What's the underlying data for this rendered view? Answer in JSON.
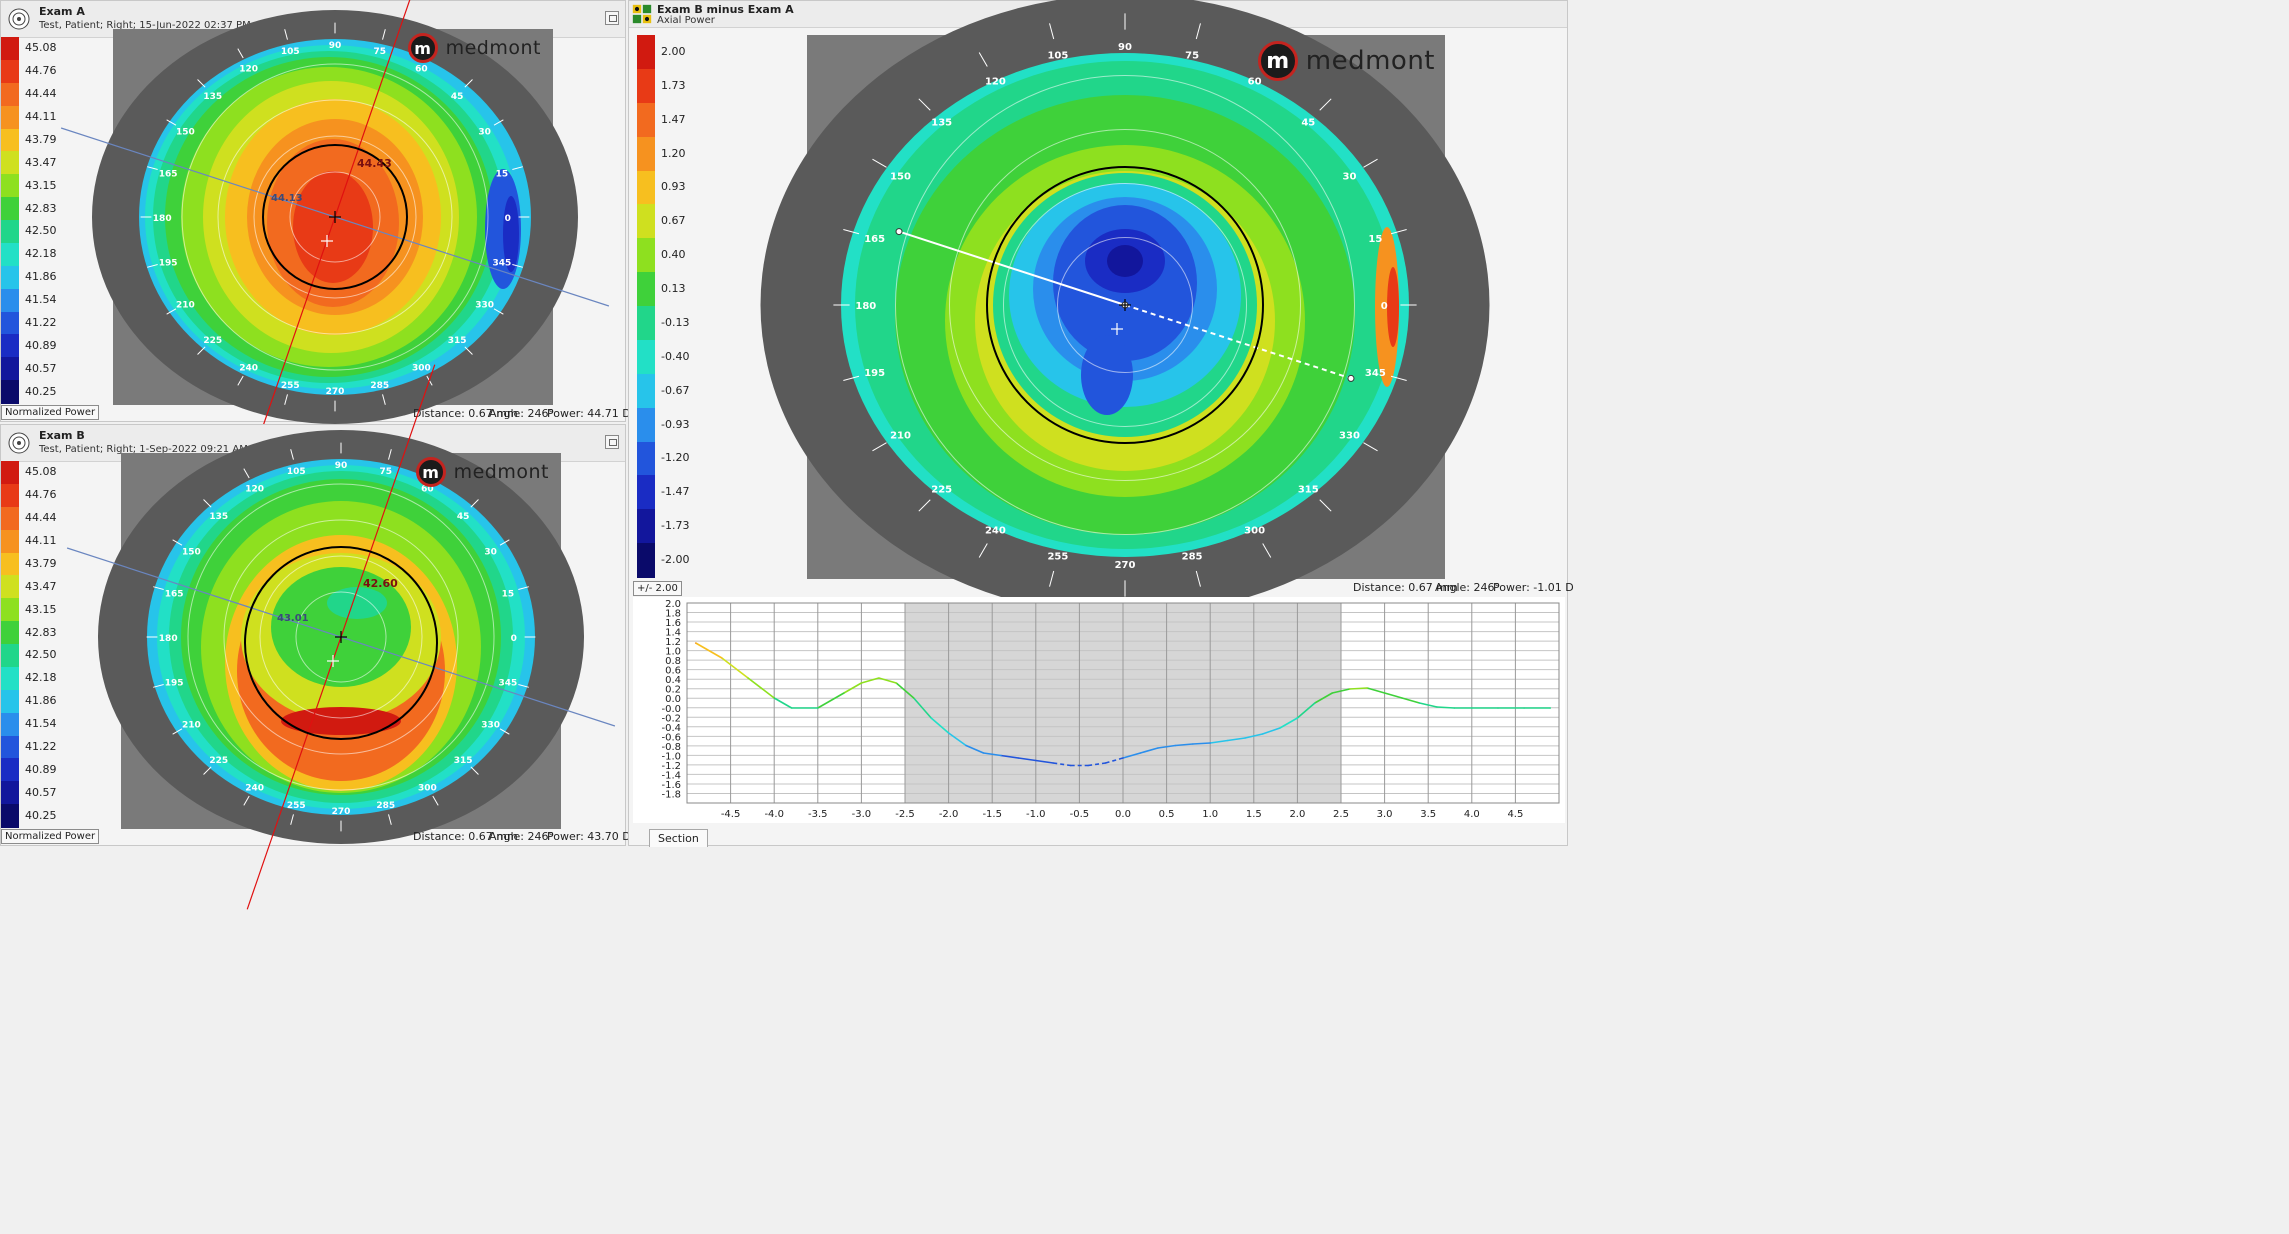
{
  "examA": {
    "title": "Exam A",
    "subtitle": "Test, Patient; Right; 15-Jun-2022 02:37 PM",
    "mode_label": "Normalized Power",
    "distance": "Distance:  0.67 mm",
    "angle": "Angle:  246°",
    "power": "Power:  44.71 D",
    "center_value": "44.43",
    "side_value": "44.13"
  },
  "examB": {
    "title": "Exam B",
    "subtitle": "Test, Patient; Right; 1-Sep-2022 09:21 AM",
    "mode_label": "Normalized Power",
    "distance": "Distance:  0.67 mm",
    "angle": "Angle:  246°",
    "power": "Power:  43.70 D",
    "center_value": "42.60",
    "side_value": "43.01"
  },
  "diff": {
    "title": "Exam B minus Exam A",
    "subtitle": "Axial Power",
    "mode_label": "+/- 2.00",
    "distance": "Distance:  0.67 mm",
    "angle": "Angle:  246°",
    "power": "Power:  -1.01 D",
    "section_tab": "Section"
  },
  "logo_text": "medmont",
  "logo_letter": "m",
  "scale_norm": {
    "labels": [
      "45.08",
      "44.76",
      "44.44",
      "44.11",
      "43.79",
      "43.47",
      "43.15",
      "42.83",
      "42.50",
      "42.18",
      "41.86",
      "41.54",
      "41.22",
      "40.89",
      "40.57",
      "40.25"
    ],
    "colors": [
      "#d11a10",
      "#e83a16",
      "#f26a1f",
      "#f6921f",
      "#f7bf1f",
      "#cfe01f",
      "#8ee01f",
      "#3fd13a",
      "#21d68a",
      "#22e0c6",
      "#27c4ea",
      "#2a8eec",
      "#2255dc",
      "#1a2cc4",
      "#12169c",
      "#0a0a6a"
    ]
  },
  "scale_diff": {
    "labels": [
      "2.00",
      "1.73",
      "1.47",
      "1.20",
      "0.93",
      "0.67",
      "0.40",
      "0.13",
      "-0.13",
      "-0.40",
      "-0.67",
      "-0.93",
      "-1.20",
      "-1.47",
      "-1.73",
      "-2.00"
    ],
    "colors": [
      "#d11a10",
      "#e83a16",
      "#f26a1f",
      "#f6921f",
      "#f7bf1f",
      "#cfe01f",
      "#8ee01f",
      "#3fd13a",
      "#21d68a",
      "#22e0c6",
      "#27c4ea",
      "#2a8eec",
      "#2255dc",
      "#1a2cc4",
      "#12169c",
      "#0a0a6a"
    ]
  },
  "meridians": [
    "0",
    "15",
    "30",
    "45",
    "60",
    "75",
    "90",
    "105",
    "120",
    "135",
    "150",
    "165",
    "180",
    "195",
    "210",
    "225",
    "240",
    "255",
    "270",
    "285",
    "300",
    "315",
    "330",
    "345"
  ],
  "chart_data": {
    "type": "line",
    "x": [
      -4.9,
      -4.6,
      -4.3,
      -4.0,
      -3.8,
      -3.5,
      -3.2,
      -3.0,
      -2.8,
      -2.6,
      -2.4,
      -2.2,
      -2.0,
      -1.8,
      -1.6,
      -1.4,
      -1.2,
      -1.0,
      -0.8,
      -0.6,
      -0.4,
      -0.2,
      0.0,
      0.2,
      0.4,
      0.6,
      0.8,
      1.0,
      1.2,
      1.4,
      1.6,
      1.8,
      2.0,
      2.2,
      2.4,
      2.6,
      2.8,
      3.0,
      3.2,
      3.4,
      3.6,
      3.8,
      4.0,
      4.3,
      4.6,
      4.9
    ],
    "y": [
      1.2,
      0.9,
      0.5,
      0.1,
      -0.1,
      -0.1,
      0.2,
      0.4,
      0.5,
      0.4,
      0.1,
      -0.3,
      -0.6,
      -0.85,
      -1.0,
      -1.05,
      -1.1,
      -1.15,
      -1.2,
      -1.25,
      -1.25,
      -1.2,
      -1.1,
      -1.0,
      -0.9,
      -0.85,
      -0.82,
      -0.8,
      -0.75,
      -0.7,
      -0.62,
      -0.5,
      -0.3,
      0.0,
      0.2,
      0.28,
      0.3,
      0.2,
      0.1,
      0.0,
      -0.08,
      -0.1,
      -0.1,
      -0.1,
      -0.1,
      -0.1
    ],
    "xlim": [
      -5.0,
      5.0
    ],
    "ylim": [
      -2.0,
      2.0
    ],
    "x_ticks": [
      "-4.5",
      "-4.0",
      "-3.5",
      "-3.0",
      "-2.5",
      "-2.0",
      "-1.5",
      "-1.0",
      "-0.5",
      "0.0",
      "0.5",
      "1.0",
      "1.5",
      "2.0",
      "2.5",
      "3.0",
      "3.5",
      "4.0",
      "4.5"
    ],
    "y_ticks": [
      "2.0",
      "1.8",
      "1.6",
      "1.4",
      "1.2",
      "1.0",
      "0.8",
      "0.6",
      "0.4",
      "0.2",
      "0.0",
      "-0.0",
      "-0.2",
      "-0.4",
      "-0.6",
      "-0.8",
      "-1.0",
      "-1.2",
      "-1.4",
      "-1.6",
      "-1.8"
    ],
    "shaded_range": [
      -2.5,
      2.5
    ],
    "grid": true
  }
}
